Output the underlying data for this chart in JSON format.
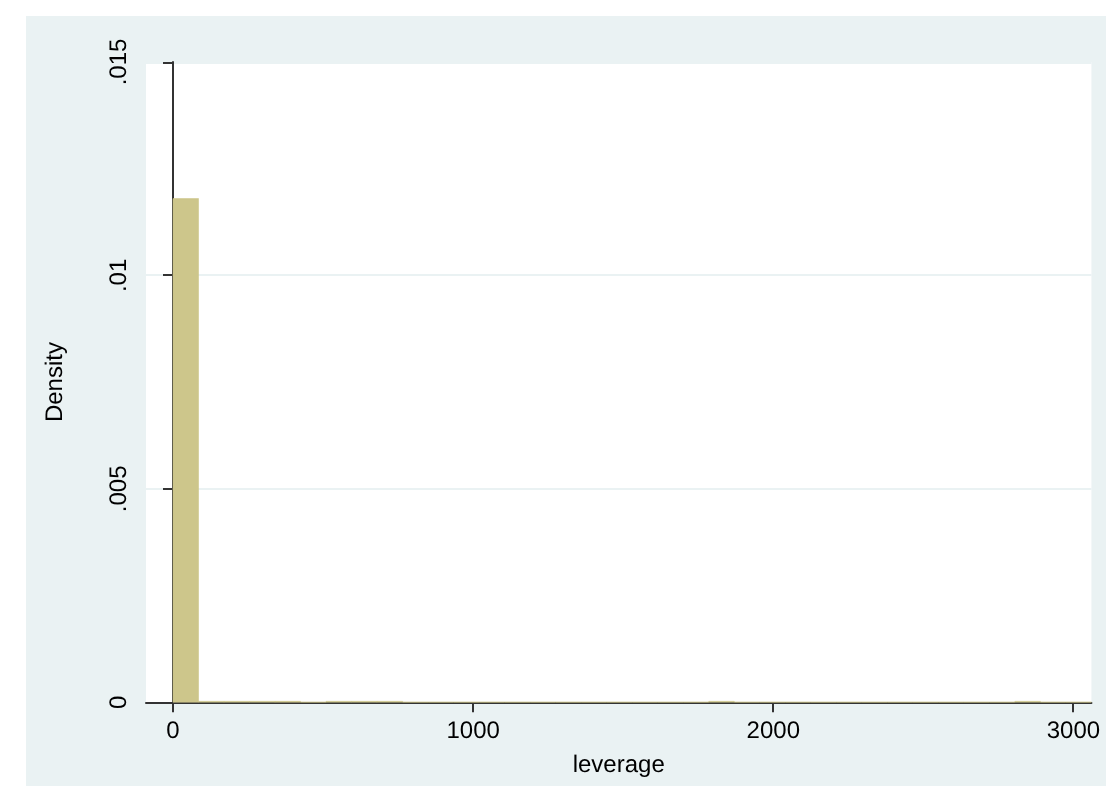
{
  "chart_data": {
    "type": "histogram",
    "xlabel": "leverage",
    "ylabel": "Density",
    "color": "#cdc68b",
    "bins": [
      0,
      85,
      170,
      255,
      340,
      425,
      510,
      595,
      680,
      765,
      850,
      935,
      1020,
      1105,
      1190,
      1275,
      1360,
      1445,
      1530,
      1615,
      1700,
      1785,
      1870,
      1955,
      2040,
      2125,
      2210,
      2295,
      2380,
      2465,
      2550,
      2635,
      2720,
      2805,
      2890,
      2975,
      3060
    ],
    "values": [
      0.0118,
      2e-05,
      2e-05,
      2e-05,
      2e-05,
      0,
      2e-05,
      2e-05,
      2e-05,
      0,
      0,
      0,
      0,
      0,
      0,
      0,
      0,
      0,
      0,
      0,
      0,
      2e-05,
      0,
      0,
      0,
      0,
      0,
      0,
      0,
      0,
      0,
      0,
      0,
      2e-05,
      0,
      0
    ],
    "xlim": [
      -90,
      3060
    ],
    "xticks": [
      0,
      1000,
      2000,
      3000
    ],
    "ylim": [
      0,
      0.015
    ],
    "yticks": [
      {
        "value": 0,
        "label": "0"
      },
      {
        "value": 0.005,
        "label": ".005"
      },
      {
        "value": 0.01,
        "label": ".01"
      },
      {
        "value": 0.015,
        "label": ".015"
      }
    ],
    "grid": "y"
  }
}
